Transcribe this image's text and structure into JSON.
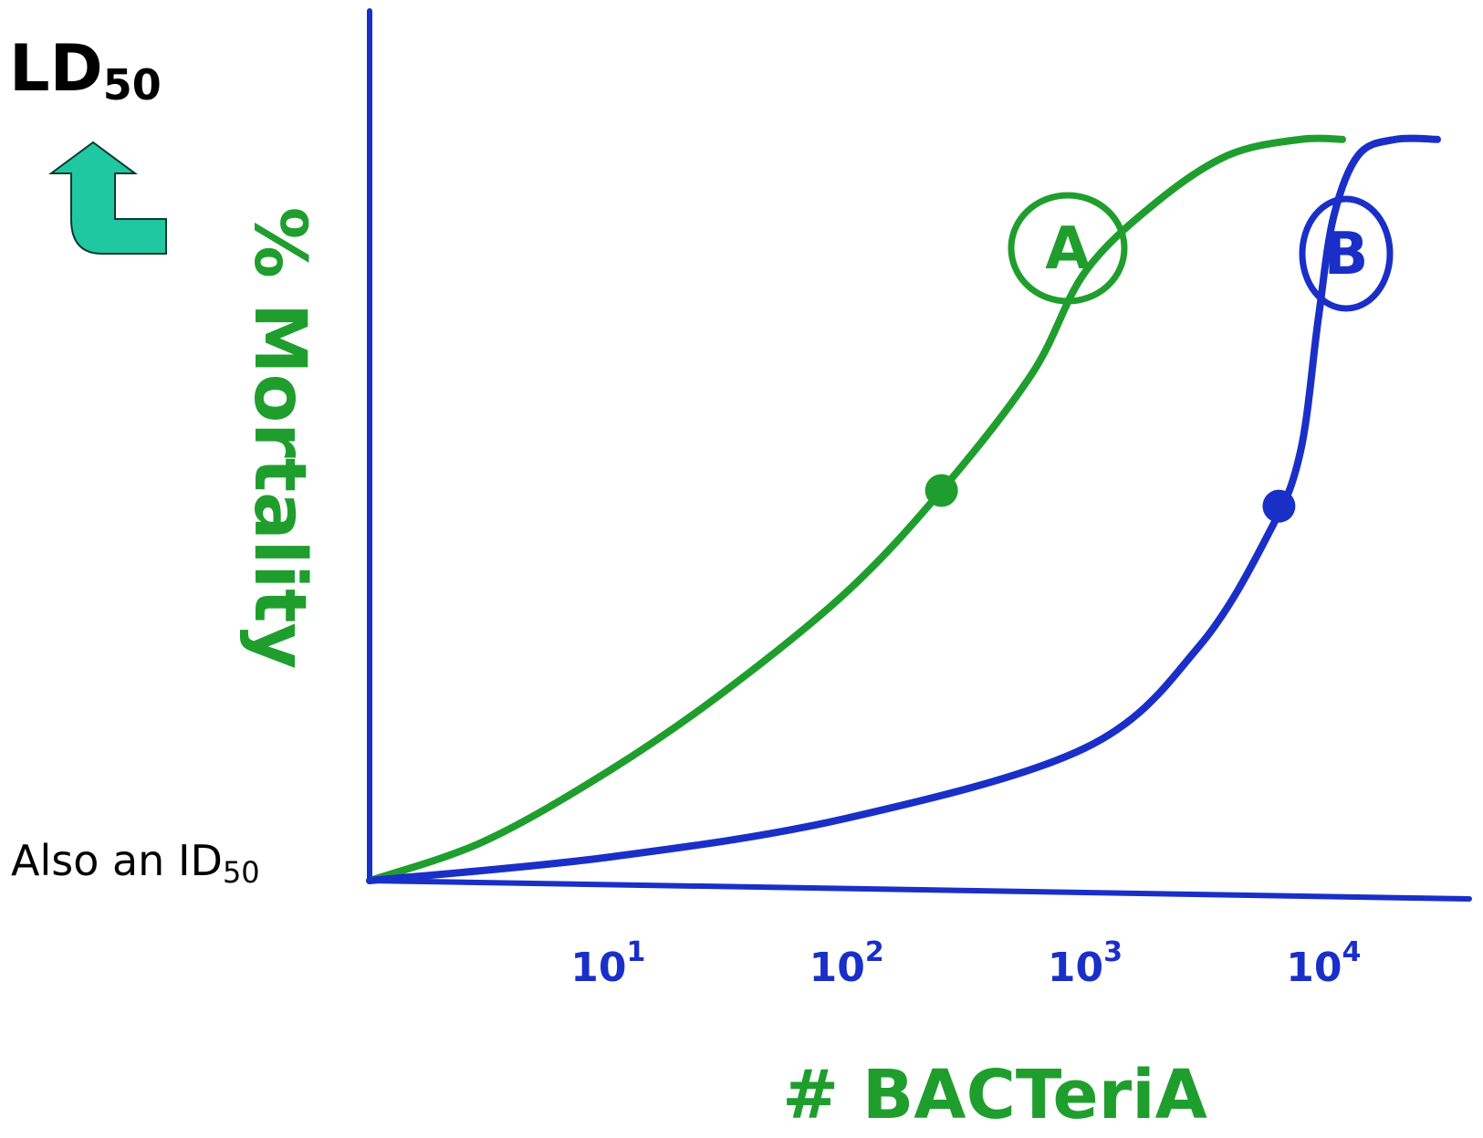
{
  "annotations": {
    "title_main": "LD",
    "title_sub": "50",
    "note_main": "Also an ID",
    "note_sub": "50",
    "arrow_color": "#1fc8a0",
    "arrow_icon": "curved-up-arrow-icon"
  },
  "chart_data": {
    "type": "line",
    "ylabel": "% Mortality",
    "xlabel": "# BACTeriA",
    "x_scale": "log",
    "xlim": [
      1,
      30000
    ],
    "ylim": [
      0,
      100
    ],
    "grid": false,
    "x_ticks": [
      {
        "value": 10,
        "base": "10",
        "exp": "1"
      },
      {
        "value": 100,
        "base": "10",
        "exp": "2"
      },
      {
        "value": 1000,
        "base": "10",
        "exp": "3"
      },
      {
        "value": 10000,
        "base": "10",
        "exp": "4"
      }
    ],
    "axis_color": "#1a2fc8",
    "series": [
      {
        "name": "A",
        "color": "#1f9e2e",
        "x": [
          1,
          3,
          10,
          30,
          100,
          250,
          600,
          1000,
          2000,
          4000,
          8000,
          12000
        ],
        "y": [
          0,
          5,
          14,
          24,
          37,
          50,
          65,
          78,
          87,
          93,
          95,
          95
        ],
        "ld50_x": 250,
        "ld50_y": 50
      },
      {
        "name": "B",
        "color": "#1a2fc8",
        "x": [
          1,
          10,
          100,
          1000,
          3000,
          6000,
          8000,
          9500,
          11000,
          14000,
          20000,
          30000
        ],
        "y": [
          0,
          3,
          8,
          17,
          30,
          45,
          55,
          72,
          85,
          93,
          95,
          95
        ],
        "ld50_x": 6500,
        "ld50_y": 48
      }
    ]
  }
}
